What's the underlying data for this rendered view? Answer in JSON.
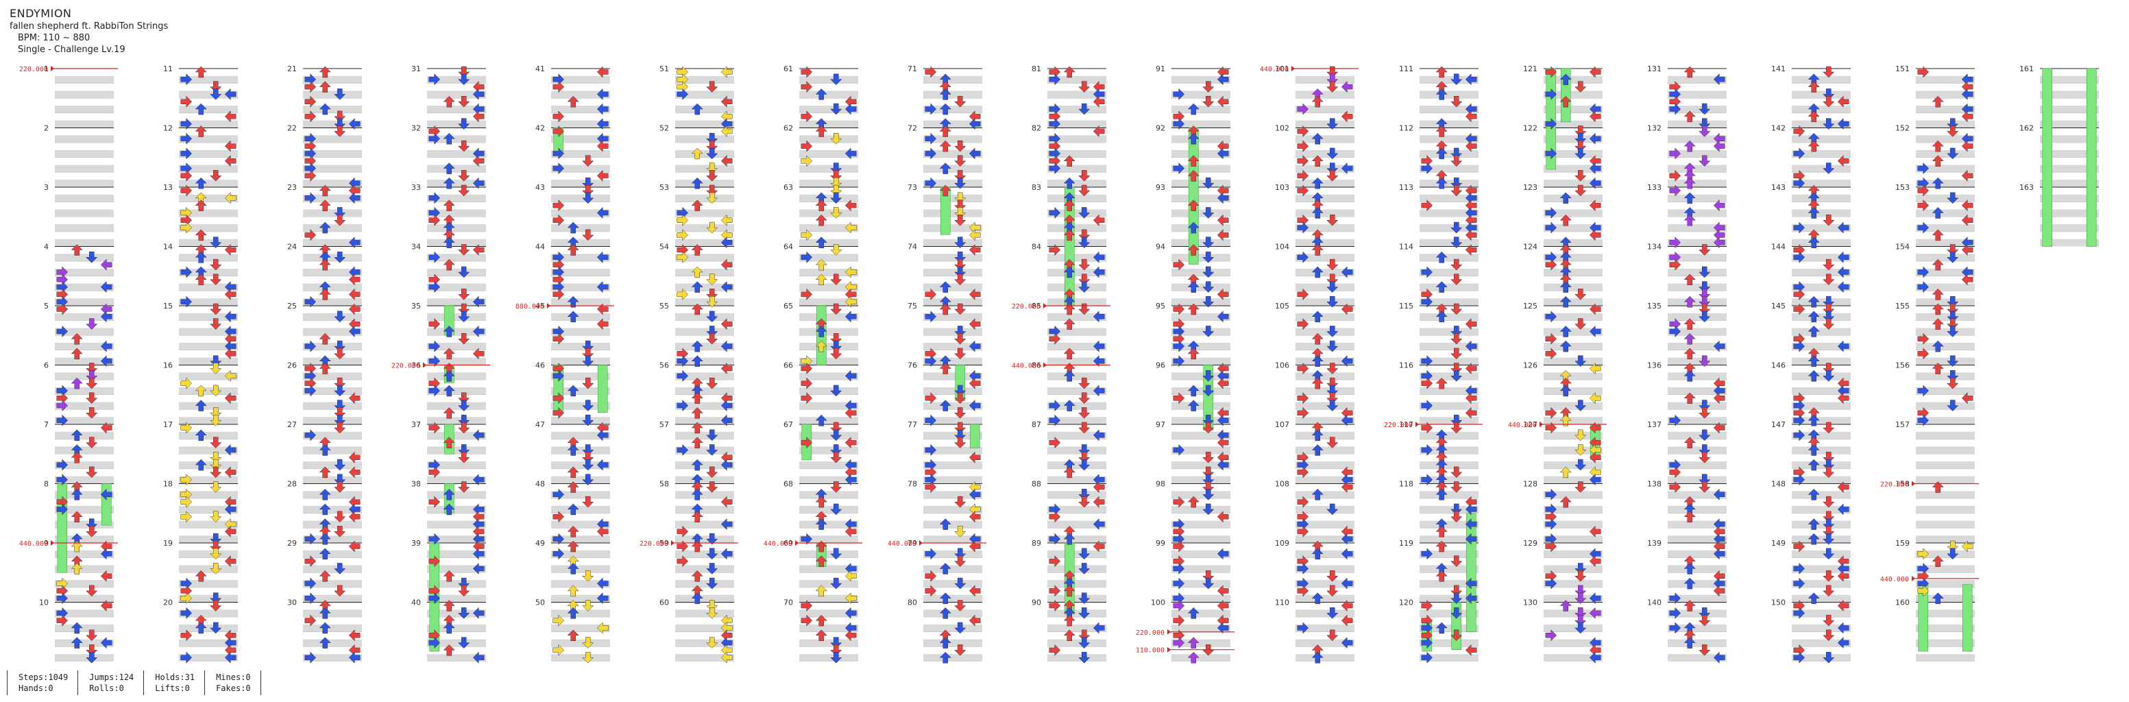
{
  "song": {
    "title": "ENDYMION",
    "artist": "fallen shepherd ft. RabbiTon Strings",
    "bpm": "BPM: 110 ~ 880",
    "difficulty": "Single - Challenge Lv.19"
  },
  "stats": {
    "steps": "Steps:1049",
    "hands": "Hands:0",
    "jumps": "Jumps:124",
    "rolls": "Rolls:0",
    "holds": "Holds:31",
    "lifts": "Lifts:0",
    "mines": "Mines:0",
    "fakes": "Fakes:0"
  },
  "colors": {
    "quarter_note": "#e8403f",
    "eighth_note": "#2f55e0",
    "sixteenth_note": "#f4d938",
    "twelfth_note": "#a040e0",
    "twentyfourth_note": "#ee9030",
    "hold_body": "#7de67d",
    "bpm_marker": "#dd2222",
    "lane_gray": "#d9d9d9"
  },
  "chart": {
    "total_measures": 163,
    "measures_per_column": 10,
    "bpm_changes": [
      {
        "measure": 1,
        "bpm": "220.000"
      },
      {
        "measure": 9,
        "bpm": "440.000"
      },
      {
        "measure": 36,
        "bpm": "220.000"
      },
      {
        "measure": 45,
        "bpm": "880.000"
      },
      {
        "measure": 59,
        "bpm": "220.000"
      },
      {
        "measure": 69,
        "bpm": "440.000"
      },
      {
        "measure": 79,
        "bpm": "440.000"
      },
      {
        "measure": 85,
        "bpm": "220.000"
      },
      {
        "measure": 86,
        "bpm": "440.000"
      },
      {
        "measure": 100.5,
        "bpm": "220.000"
      },
      {
        "measure": 100.8,
        "bpm": "110.000"
      },
      {
        "measure": 101,
        "bpm": "440.000"
      },
      {
        "measure": 117,
        "bpm": "220.000"
      },
      {
        "measure": 127,
        "bpm": "440.000"
      },
      {
        "measure": 158,
        "bpm": "220.000"
      },
      {
        "measure": 159.6,
        "bpm": "440.000"
      }
    ],
    "holds": [
      {
        "measure": 8,
        "lane": 0,
        "length": 1.5
      },
      {
        "measure": 8,
        "lane": 3,
        "length": 0.7
      },
      {
        "measure": 35,
        "lane": 1,
        "length": 0.5
      },
      {
        "measure": 36,
        "lane": 1,
        "length": 0.3
      },
      {
        "measure": 37,
        "lane": 1,
        "length": 0.5
      },
      {
        "measure": 38,
        "lane": 1,
        "length": 0.5
      },
      {
        "measure": 39,
        "lane": 0,
        "length": 1.0
      },
      {
        "measure": 40,
        "lane": 0,
        "length": 1.0
      },
      {
        "measure": 42,
        "lane": 0,
        "length": 0.4
      },
      {
        "measure": 46,
        "lane": 0,
        "length": 0.8
      },
      {
        "measure": 46,
        "lane": 3,
        "length": 0.8
      },
      {
        "measure": 65,
        "lane": 1,
        "length": 1.0
      },
      {
        "measure": 67,
        "lane": 0,
        "length": 0.6
      },
      {
        "measure": 69,
        "lane": 1,
        "length": 0.4
      },
      {
        "measure": 73,
        "lane": 1,
        "length": 0.8
      },
      {
        "measure": 76,
        "lane": 2,
        "length": 0.6
      },
      {
        "measure": 77,
        "lane": 3,
        "length": 0.4
      },
      {
        "measure": 83,
        "lane": 1,
        "length": 2.0
      },
      {
        "measure": 89,
        "lane": 1,
        "length": 1.2
      },
      {
        "measure": 92,
        "lane": 1,
        "length": 2.3
      },
      {
        "measure": 96,
        "lane": 2,
        "length": 1.1
      },
      {
        "measure": 118.5,
        "lane": 3,
        "length": 2.0
      },
      {
        "measure": 120,
        "lane": 2,
        "length": 0.8
      },
      {
        "measure": 120.3,
        "lane": 0,
        "length": 1.2
      },
      {
        "measure": 121,
        "lane": 0,
        "length": 1.7
      },
      {
        "measure": 121,
        "lane": 1,
        "length": 0.9
      },
      {
        "measure": 127,
        "lane": 3,
        "length": 0.6
      },
      {
        "measure": 159.7,
        "lane": 0,
        "length": 2.0
      },
      {
        "measure": 159.7,
        "lane": 3,
        "length": 2.0
      },
      {
        "measure": 161,
        "lane": 0,
        "length": 3.0
      },
      {
        "measure": 161,
        "lane": 3,
        "length": 3.0
      }
    ]
  }
}
